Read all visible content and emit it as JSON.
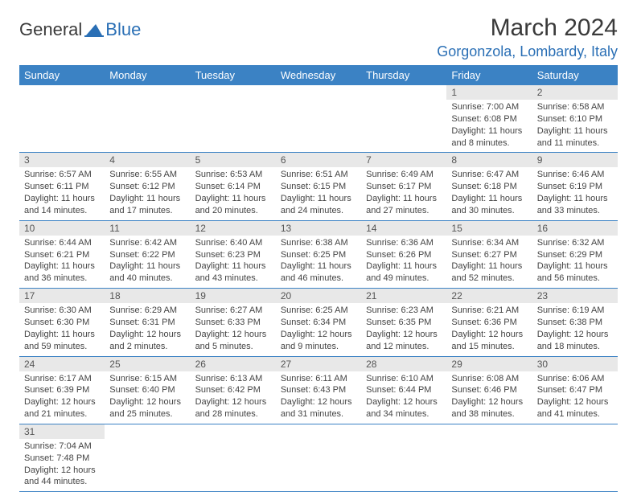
{
  "logo": {
    "text1": "General",
    "text2": "Blue"
  },
  "title": "March 2024",
  "location": "Gorgonzola, Lombardy, Italy",
  "colors": {
    "header_bg": "#3b82c4",
    "header_text": "#ffffff",
    "daynum_bg": "#e8e8e8",
    "row_border": "#3b82c4",
    "location_color": "#2a6fb5"
  },
  "columns": [
    "Sunday",
    "Monday",
    "Tuesday",
    "Wednesday",
    "Thursday",
    "Friday",
    "Saturday"
  ],
  "weeks": [
    [
      {
        "empty": true
      },
      {
        "empty": true
      },
      {
        "empty": true
      },
      {
        "empty": true
      },
      {
        "empty": true
      },
      {
        "n": "1",
        "sr": "7:00 AM",
        "ss": "6:08 PM",
        "dl": "11 hours and 8 minutes."
      },
      {
        "n": "2",
        "sr": "6:58 AM",
        "ss": "6:10 PM",
        "dl": "11 hours and 11 minutes."
      }
    ],
    [
      {
        "n": "3",
        "sr": "6:57 AM",
        "ss": "6:11 PM",
        "dl": "11 hours and 14 minutes."
      },
      {
        "n": "4",
        "sr": "6:55 AM",
        "ss": "6:12 PM",
        "dl": "11 hours and 17 minutes."
      },
      {
        "n": "5",
        "sr": "6:53 AM",
        "ss": "6:14 PM",
        "dl": "11 hours and 20 minutes."
      },
      {
        "n": "6",
        "sr": "6:51 AM",
        "ss": "6:15 PM",
        "dl": "11 hours and 24 minutes."
      },
      {
        "n": "7",
        "sr": "6:49 AM",
        "ss": "6:17 PM",
        "dl": "11 hours and 27 minutes."
      },
      {
        "n": "8",
        "sr": "6:47 AM",
        "ss": "6:18 PM",
        "dl": "11 hours and 30 minutes."
      },
      {
        "n": "9",
        "sr": "6:46 AM",
        "ss": "6:19 PM",
        "dl": "11 hours and 33 minutes."
      }
    ],
    [
      {
        "n": "10",
        "sr": "6:44 AM",
        "ss": "6:21 PM",
        "dl": "11 hours and 36 minutes."
      },
      {
        "n": "11",
        "sr": "6:42 AM",
        "ss": "6:22 PM",
        "dl": "11 hours and 40 minutes."
      },
      {
        "n": "12",
        "sr": "6:40 AM",
        "ss": "6:23 PM",
        "dl": "11 hours and 43 minutes."
      },
      {
        "n": "13",
        "sr": "6:38 AM",
        "ss": "6:25 PM",
        "dl": "11 hours and 46 minutes."
      },
      {
        "n": "14",
        "sr": "6:36 AM",
        "ss": "6:26 PM",
        "dl": "11 hours and 49 minutes."
      },
      {
        "n": "15",
        "sr": "6:34 AM",
        "ss": "6:27 PM",
        "dl": "11 hours and 52 minutes."
      },
      {
        "n": "16",
        "sr": "6:32 AM",
        "ss": "6:29 PM",
        "dl": "11 hours and 56 minutes."
      }
    ],
    [
      {
        "n": "17",
        "sr": "6:30 AM",
        "ss": "6:30 PM",
        "dl": "11 hours and 59 minutes."
      },
      {
        "n": "18",
        "sr": "6:29 AM",
        "ss": "6:31 PM",
        "dl": "12 hours and 2 minutes."
      },
      {
        "n": "19",
        "sr": "6:27 AM",
        "ss": "6:33 PM",
        "dl": "12 hours and 5 minutes."
      },
      {
        "n": "20",
        "sr": "6:25 AM",
        "ss": "6:34 PM",
        "dl": "12 hours and 9 minutes."
      },
      {
        "n": "21",
        "sr": "6:23 AM",
        "ss": "6:35 PM",
        "dl": "12 hours and 12 minutes."
      },
      {
        "n": "22",
        "sr": "6:21 AM",
        "ss": "6:36 PM",
        "dl": "12 hours and 15 minutes."
      },
      {
        "n": "23",
        "sr": "6:19 AM",
        "ss": "6:38 PM",
        "dl": "12 hours and 18 minutes."
      }
    ],
    [
      {
        "n": "24",
        "sr": "6:17 AM",
        "ss": "6:39 PM",
        "dl": "12 hours and 21 minutes."
      },
      {
        "n": "25",
        "sr": "6:15 AM",
        "ss": "6:40 PM",
        "dl": "12 hours and 25 minutes."
      },
      {
        "n": "26",
        "sr": "6:13 AM",
        "ss": "6:42 PM",
        "dl": "12 hours and 28 minutes."
      },
      {
        "n": "27",
        "sr": "6:11 AM",
        "ss": "6:43 PM",
        "dl": "12 hours and 31 minutes."
      },
      {
        "n": "28",
        "sr": "6:10 AM",
        "ss": "6:44 PM",
        "dl": "12 hours and 34 minutes."
      },
      {
        "n": "29",
        "sr": "6:08 AM",
        "ss": "6:46 PM",
        "dl": "12 hours and 38 minutes."
      },
      {
        "n": "30",
        "sr": "6:06 AM",
        "ss": "6:47 PM",
        "dl": "12 hours and 41 minutes."
      }
    ],
    [
      {
        "n": "31",
        "sr": "7:04 AM",
        "ss": "7:48 PM",
        "dl": "12 hours and 44 minutes."
      },
      {
        "empty": true
      },
      {
        "empty": true
      },
      {
        "empty": true
      },
      {
        "empty": true
      },
      {
        "empty": true
      },
      {
        "empty": true
      }
    ]
  ],
  "labels": {
    "sunrise": "Sunrise:",
    "sunset": "Sunset:",
    "daylight": "Daylight:"
  }
}
